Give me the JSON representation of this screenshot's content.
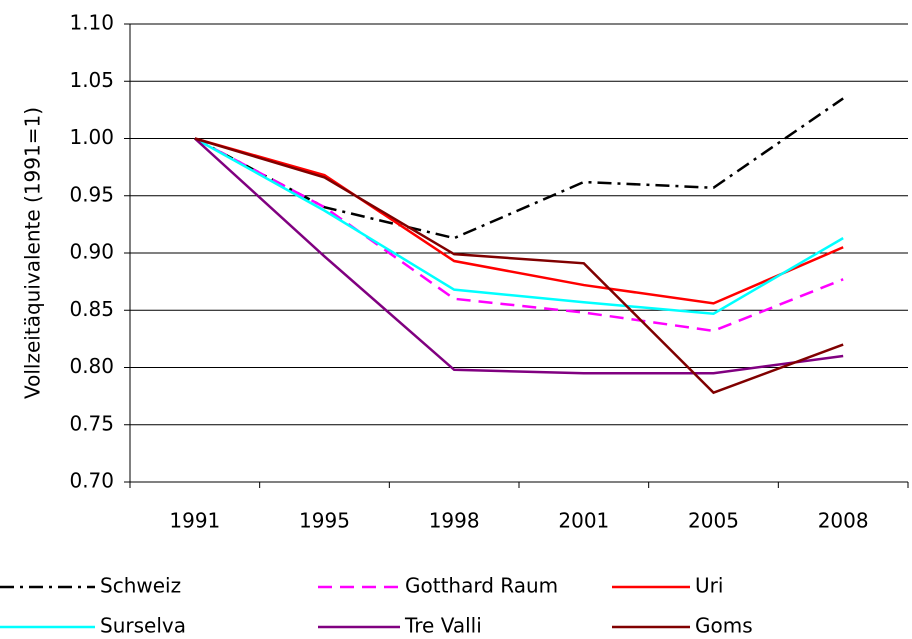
{
  "chart_data": {
    "type": "line",
    "y_label": "Vollzeitäquivalente (1991=1)",
    "categories": [
      "1991",
      "1995",
      "1998",
      "2001",
      "2005",
      "2008"
    ],
    "ylim": [
      0.7,
      1.1
    ],
    "yticks": [
      {
        "value": 0.7,
        "label": "0.70"
      },
      {
        "value": 0.75,
        "label": "0.75"
      },
      {
        "value": 0.8,
        "label": "0.80"
      },
      {
        "value": 0.85,
        "label": "0.85"
      },
      {
        "value": 0.9,
        "label": "0.90"
      },
      {
        "value": 0.95,
        "label": "0.95"
      },
      {
        "value": 1.0,
        "label": "1.00"
      },
      {
        "value": 1.05,
        "label": "1.05"
      },
      {
        "value": 1.1,
        "label": "1.10"
      }
    ],
    "grid": true,
    "legend": "bottom",
    "series": [
      {
        "name": "Schweiz",
        "color": "#000000",
        "dash": "dashdot",
        "values": [
          1.0,
          0.94,
          0.913,
          0.962,
          0.957,
          1.035
        ]
      },
      {
        "name": "Gotthard Raum",
        "color": "#ff00ff",
        "dash": "dashed",
        "values": [
          1.0,
          0.94,
          0.86,
          0.848,
          0.832,
          0.877
        ]
      },
      {
        "name": "Uri",
        "color": "#ff0000",
        "dash": "solid",
        "values": [
          1.0,
          0.968,
          0.893,
          0.872,
          0.856,
          0.905
        ]
      },
      {
        "name": "Surselva",
        "color": "#00ffff",
        "dash": "solid",
        "values": [
          1.0,
          0.937,
          0.868,
          0.857,
          0.847,
          0.913
        ]
      },
      {
        "name": "Tre Valli",
        "color": "#800080",
        "dash": "solid",
        "values": [
          1.0,
          0.897,
          0.798,
          0.795,
          0.795,
          0.81
        ]
      },
      {
        "name": "Goms",
        "color": "#800000",
        "dash": "solid",
        "values": [
          1.0,
          0.966,
          0.899,
          0.891,
          0.778,
          0.82
        ]
      }
    ]
  }
}
